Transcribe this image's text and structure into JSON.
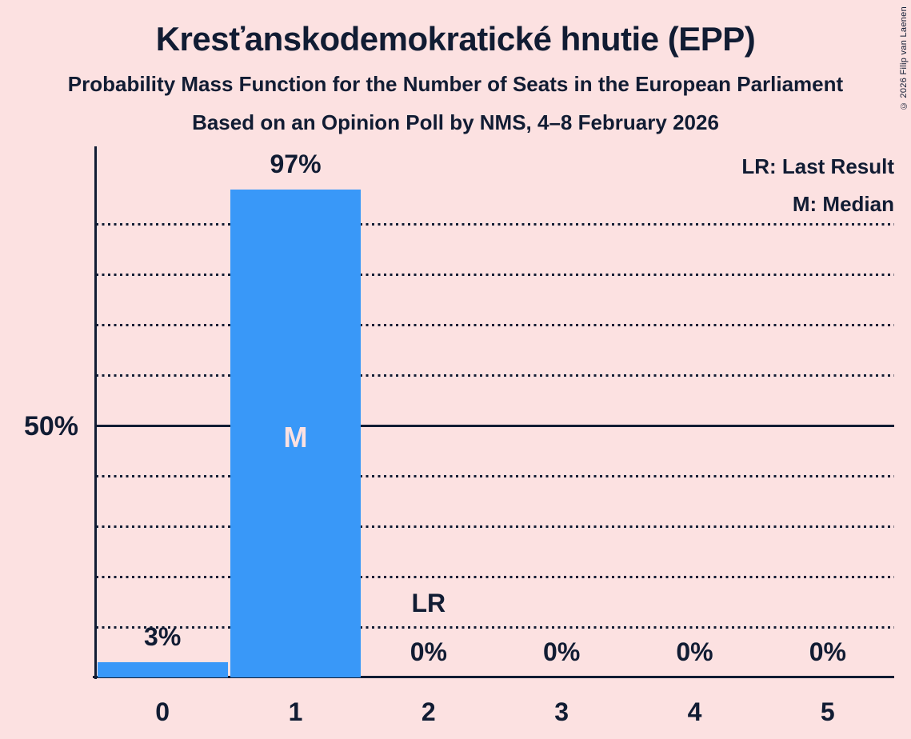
{
  "title": "Kresťanskodemokratické hnutie (EPP)",
  "subtitle1": "Probability Mass Function for the Number of Seats in the European Parliament",
  "subtitle2": "Based on an Opinion Poll by NMS, 4–8 February 2026",
  "copyright": "© 2026 Filip van Laenen",
  "colors": {
    "background": "#fce1e1",
    "bar": "#3998f8",
    "text": "#111c33"
  },
  "chart_data": {
    "type": "bar",
    "title": "Kresťanskodemokratické hnutie (EPP)",
    "categories": [
      "0",
      "1",
      "2",
      "3",
      "4",
      "5"
    ],
    "values": [
      3,
      97,
      0,
      0,
      0,
      0
    ],
    "value_labels": [
      "3%",
      "97%",
      "0%",
      "0%",
      "0%",
      "0%"
    ],
    "ylim": [
      0,
      105.5
    ],
    "ytick": {
      "value": 50,
      "label": "50%"
    },
    "solid_gridline_pct": 50,
    "dotted_gridlines_pct": [
      10,
      20,
      30,
      40,
      60,
      70,
      80,
      90
    ],
    "grid": "horizontal-dotted",
    "legend_position": "top-right",
    "legend": {
      "lr": "LR: Last Result",
      "m": "M: Median"
    },
    "annotations": [
      {
        "text": "M",
        "meaning": "Median",
        "category_index": 1,
        "y_center_pct": 47.7,
        "style": "median"
      },
      {
        "text": "LR",
        "meaning": "Last Result",
        "category_index": 2,
        "y_center_pct": 14.8,
        "style": "last-result"
      }
    ]
  }
}
